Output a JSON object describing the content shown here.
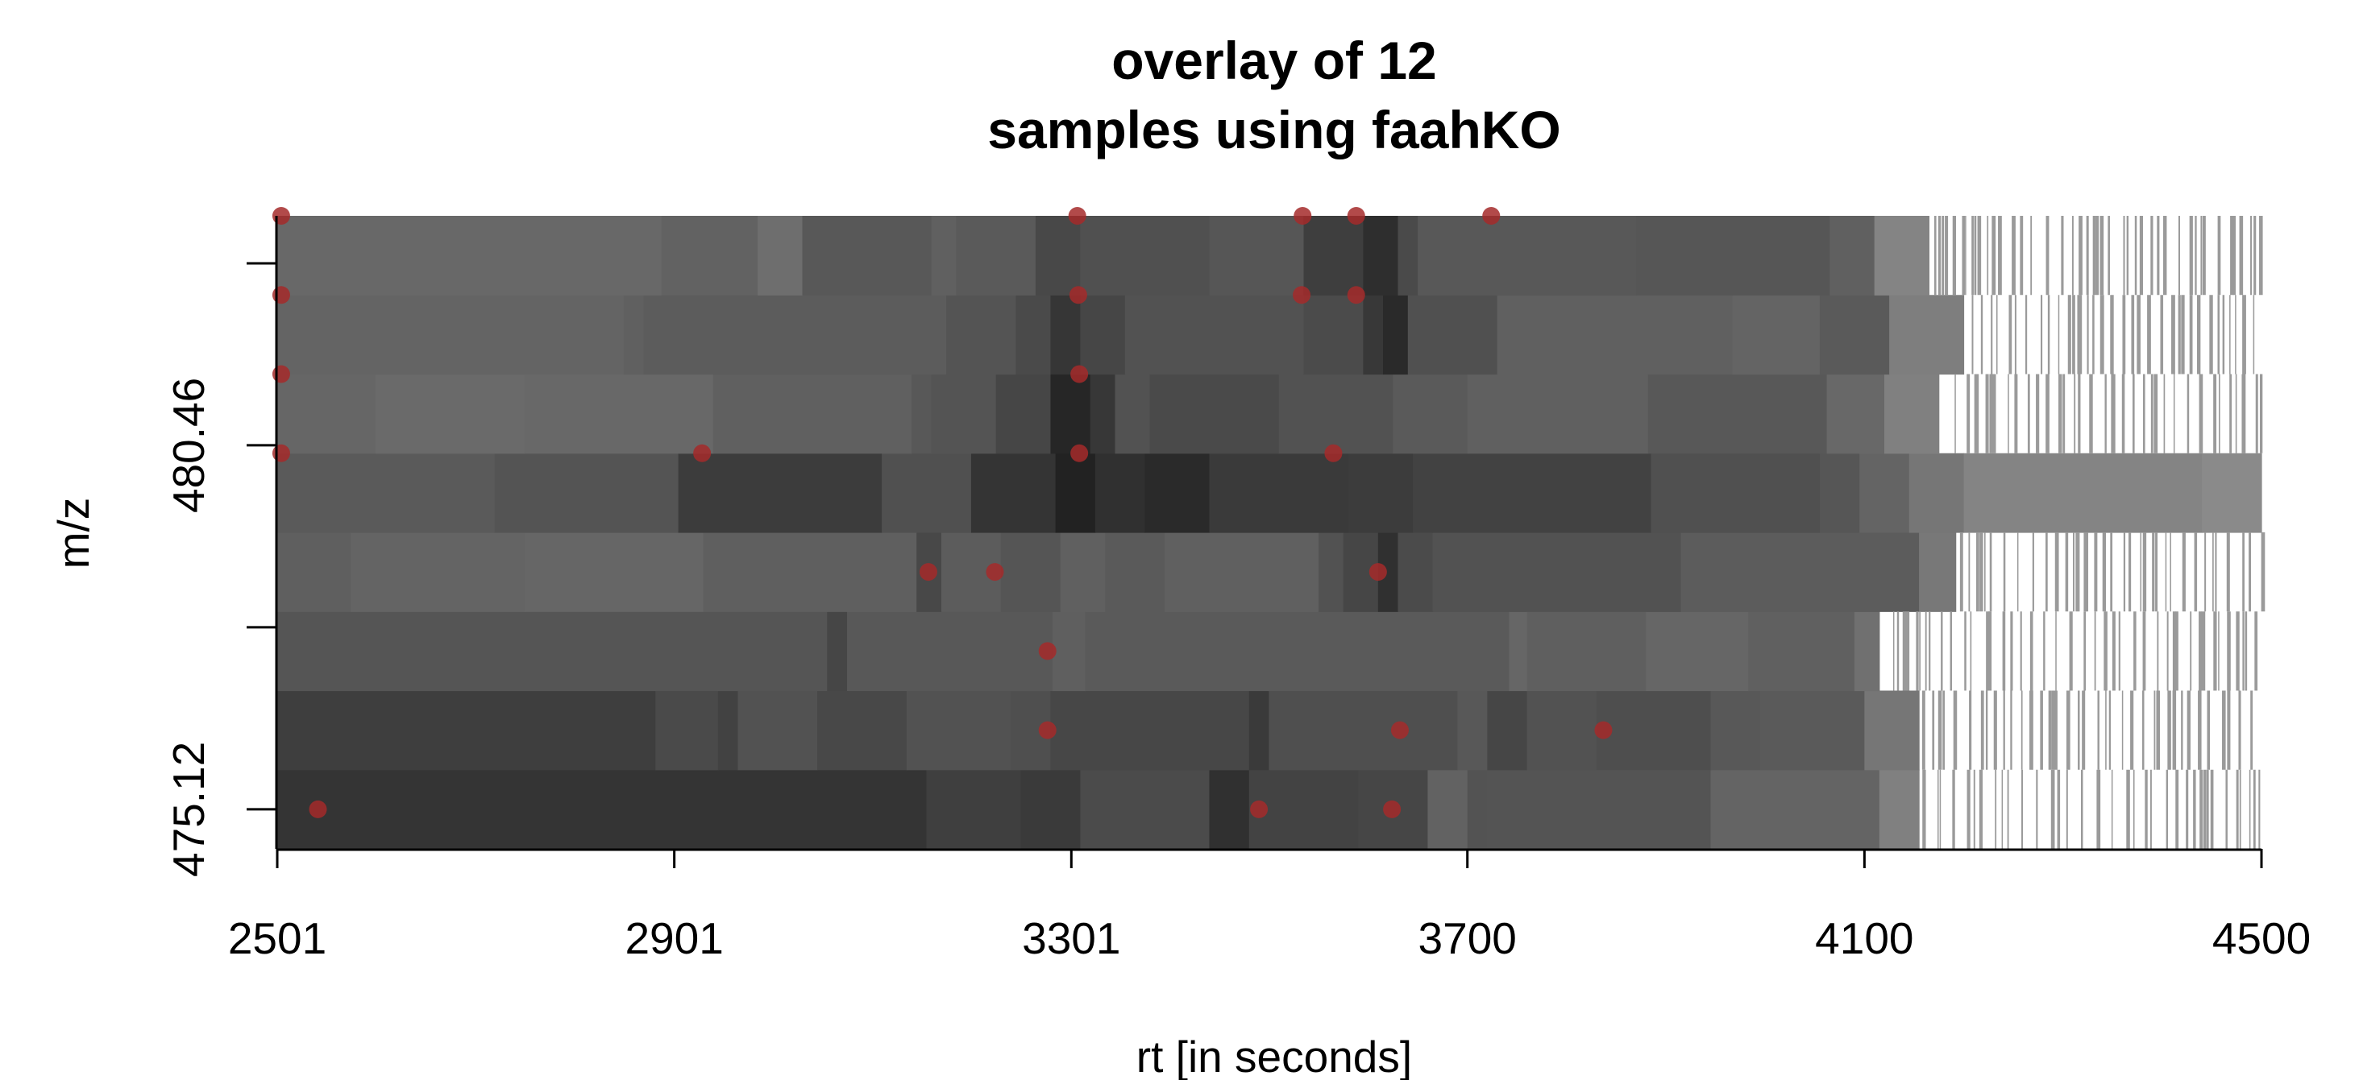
{
  "chart_data": {
    "type": "heatmap",
    "title": "overlay of 12\nsamples using faahKO",
    "title_lines": [
      "overlay of 12",
      "samples using faahKO"
    ],
    "xlabel": "rt [in seconds]",
    "ylabel": "m/z",
    "xlim": [
      2501,
      4500
    ],
    "x_ticks": [
      "2501",
      "2901",
      "3301",
      "3700",
      "4100",
      "4500"
    ],
    "y_ticks": [
      {
        "label": "475.12",
        "row": 0.5
      },
      {
        "label": "",
        "row": 2.8
      },
      {
        "label": "480.46",
        "row": 5.1
      },
      {
        "label": "",
        "row": 7.4
      }
    ],
    "rows": 8,
    "row_segments": [
      [
        [
          2501,
          3155,
          52
        ],
        [
          3155,
          3250,
          63
        ],
        [
          3250,
          3310,
          58
        ],
        [
          3310,
          3440,
          75
        ],
        [
          3440,
          3480,
          48
        ],
        [
          3480,
          3590,
          67
        ],
        [
          3590,
          3660,
          70
        ],
        [
          3660,
          3700,
          98
        ],
        [
          3700,
          3720,
          83
        ],
        [
          3720,
          3945,
          84
        ],
        [
          3945,
          4115,
          100
        ],
        [
          4115,
          4155,
          128
        ]
      ],
      [
        [
          2501,
          2882,
          62
        ],
        [
          2882,
          2945,
          74
        ],
        [
          2945,
          2965,
          66
        ],
        [
          2965,
          3045,
          82
        ],
        [
          3045,
          3135,
          72
        ],
        [
          3135,
          3240,
          82
        ],
        [
          3240,
          3280,
          79
        ],
        [
          3280,
          3480,
          71
        ],
        [
          3480,
          3500,
          58
        ],
        [
          3500,
          3690,
          79
        ],
        [
          3690,
          3720,
          88
        ],
        [
          3720,
          3760,
          70
        ],
        [
          3760,
          3830,
          82
        ],
        [
          3830,
          3945,
          78
        ],
        [
          3945,
          3995,
          88
        ],
        [
          3995,
          4100,
          90
        ],
        [
          4100,
          4155,
          118
        ]
      ],
      [
        [
          2501,
          3055,
          85
        ],
        [
          3055,
          3075,
          70
        ],
        [
          3075,
          3282,
          88
        ],
        [
          3282,
          3315,
          95
        ],
        [
          3315,
          3742,
          90
        ],
        [
          3742,
          3760,
          102
        ],
        [
          3760,
          3880,
          95
        ],
        [
          3880,
          3983,
          102
        ],
        [
          3983,
          4090,
          96
        ],
        [
          4090,
          4115,
          112
        ]
      ],
      [
        [
          2501,
          2575,
          95
        ],
        [
          2575,
          2750,
          100
        ],
        [
          2750,
          2930,
          102
        ],
        [
          2930,
          3145,
          95
        ],
        [
          3145,
          3170,
          72
        ],
        [
          3170,
          3230,
          92
        ],
        [
          3230,
          3290,
          85
        ],
        [
          3290,
          3335,
          96
        ],
        [
          3335,
          3395,
          90
        ],
        [
          3395,
          3550,
          96
        ],
        [
          3550,
          3575,
          82
        ],
        [
          3575,
          3610,
          70
        ],
        [
          3610,
          3630,
          48
        ],
        [
          3630,
          3665,
          75
        ],
        [
          3665,
          3915,
          82
        ],
        [
          3915,
          4155,
          92
        ],
        [
          4155,
          4192,
          120
        ]
      ],
      [
        [
          2501,
          2720,
          90
        ],
        [
          2720,
          2735,
          84
        ],
        [
          2735,
          2905,
          84
        ],
        [
          2905,
          3110,
          60
        ],
        [
          3110,
          3200,
          80
        ],
        [
          3200,
          3285,
          52
        ],
        [
          3285,
          3325,
          34
        ],
        [
          3325,
          3375,
          48
        ],
        [
          3375,
          3440,
          42
        ],
        [
          3440,
          3580,
          58
        ],
        [
          3580,
          3645,
          60
        ],
        [
          3645,
          3675,
          66
        ],
        [
          3675,
          3885,
          66
        ],
        [
          3885,
          4055,
          80
        ],
        [
          4055,
          4095,
          86
        ],
        [
          4095,
          4145,
          100
        ],
        [
          4145,
          4200,
          118
        ],
        [
          4200,
          4440,
          132
        ],
        [
          4440,
          4500,
          138
        ]
      ],
      [
        [
          2501,
          2600,
          102
        ],
        [
          2600,
          2750,
          106
        ],
        [
          2750,
          2940,
          104
        ],
        [
          2940,
          3140,
          96
        ],
        [
          3140,
          3160,
          88
        ],
        [
          3160,
          3225,
          84
        ],
        [
          3225,
          3280,
          70
        ],
        [
          3280,
          3320,
          38
        ],
        [
          3320,
          3345,
          55
        ],
        [
          3345,
          3380,
          82
        ],
        [
          3380,
          3510,
          74
        ],
        [
          3510,
          3625,
          82
        ],
        [
          3625,
          3700,
          90
        ],
        [
          3700,
          3882,
          96
        ],
        [
          3882,
          4062,
          88
        ],
        [
          4062,
          4120,
          104
        ],
        [
          4120,
          4175,
          128
        ]
      ],
      [
        [
          2501,
          2850,
          100
        ],
        [
          2850,
          2870,
          96
        ],
        [
          2870,
          3175,
          92
        ],
        [
          3175,
          3245,
          84
        ],
        [
          3245,
          3280,
          74
        ],
        [
          3280,
          3310,
          54
        ],
        [
          3310,
          3355,
          70
        ],
        [
          3355,
          3535,
          82
        ],
        [
          3535,
          3595,
          75
        ],
        [
          3595,
          3615,
          56
        ],
        [
          3615,
          3640,
          42
        ],
        [
          3640,
          3730,
          80
        ],
        [
          3730,
          3967,
          96
        ],
        [
          3967,
          4055,
          100
        ],
        [
          4055,
          4125,
          90
        ],
        [
          4125,
          4200,
          126
        ]
      ],
      [
        [
          2501,
          2888,
          104
        ],
        [
          2888,
          2985,
          98
        ],
        [
          2985,
          3030,
          110
        ],
        [
          3030,
          3160,
          88
        ],
        [
          3160,
          3185,
          96
        ],
        [
          3185,
          3265,
          90
        ],
        [
          3265,
          3310,
          72
        ],
        [
          3310,
          3440,
          80
        ],
        [
          3440,
          3535,
          86
        ],
        [
          3535,
          3595,
          62
        ],
        [
          3595,
          3630,
          46
        ],
        [
          3630,
          3650,
          74
        ],
        [
          3650,
          3870,
          88
        ],
        [
          3870,
          4065,
          86
        ],
        [
          4065,
          4110,
          96
        ],
        [
          4110,
          4165,
          132
        ]
      ]
    ],
    "peaks": [
      {
        "rt": 2542,
        "row": 0.5
      },
      {
        "rt": 3490,
        "row": 0.5
      },
      {
        "rt": 3624,
        "row": 0.5
      },
      {
        "rt": 3277,
        "row": 1.5
      },
      {
        "rt": 3632,
        "row": 1.5
      },
      {
        "rt": 3837,
        "row": 1.5
      },
      {
        "rt": 3277,
        "row": 2.5
      },
      {
        "rt": 3157,
        "row": 3.5
      },
      {
        "rt": 3224,
        "row": 3.5
      },
      {
        "rt": 3610,
        "row": 3.5
      },
      {
        "rt": 2505,
        "row": 5.0
      },
      {
        "rt": 2929,
        "row": 5.0
      },
      {
        "rt": 3309,
        "row": 5.0
      },
      {
        "rt": 3565,
        "row": 5.0
      },
      {
        "rt": 2505,
        "row": 6.0
      },
      {
        "rt": 3309,
        "row": 6.0
      },
      {
        "rt": 2505,
        "row": 7.0
      },
      {
        "rt": 3308,
        "row": 7.0
      },
      {
        "rt": 3533,
        "row": 7.0
      },
      {
        "rt": 3588,
        "row": 7.0
      },
      {
        "rt": 2505,
        "row": 8.0
      },
      {
        "rt": 3307,
        "row": 8.0
      },
      {
        "rt": 3534,
        "row": 8.0
      },
      {
        "rt": 3588,
        "row": 8.0
      },
      {
        "rt": 3724,
        "row": 8.0
      }
    ],
    "peak_color": "#a52a2a",
    "tail_color": "#9a9a9a",
    "grid": false,
    "legend": "none"
  }
}
